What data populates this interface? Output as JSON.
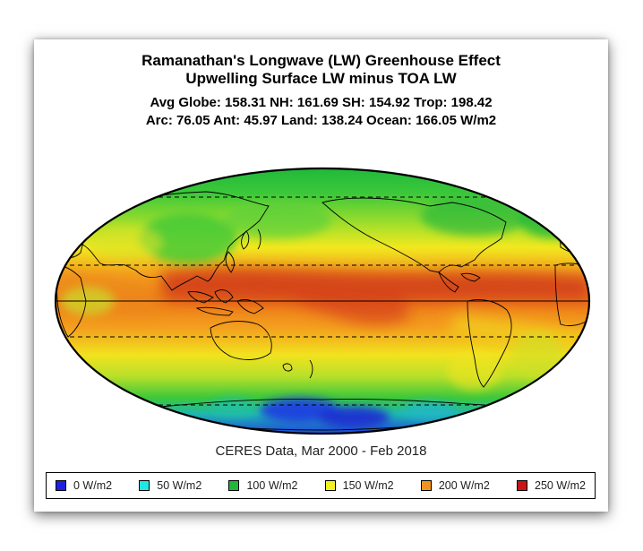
{
  "title": {
    "line1": "Ramanathan's Longwave (LW) Greenhouse Effect",
    "line2": "Upwelling Surface LW minus TOA LW",
    "stats1": "Avg Globe: 158.31  NH: 161.69  SH: 154.92  Trop: 198.42",
    "stats2": "Arc: 76.05  Ant: 45.97  Land: 138.24 Ocean: 166.05 W/m2"
  },
  "caption": "CERES Data, Mar 2000 - Feb 2018",
  "legend": [
    {
      "label": "0 W/m2",
      "color": "#1f1fe0"
    },
    {
      "label": "50 W/m2",
      "color": "#22e6e6"
    },
    {
      "label": "100 W/m2",
      "color": "#1fb83a"
    },
    {
      "label": "150 W/m2",
      "color": "#f2f21e"
    },
    {
      "label": "200 W/m2",
      "color": "#f0941e"
    },
    {
      "label": "250 W/m2",
      "color": "#c81414"
    }
  ],
  "map": {
    "projection": "mollweide",
    "center": "pacific",
    "latitude_lines": [
      "equator",
      "tropic-north",
      "tropic-south",
      "arctic-circle",
      "antarctic-circle"
    ]
  }
}
